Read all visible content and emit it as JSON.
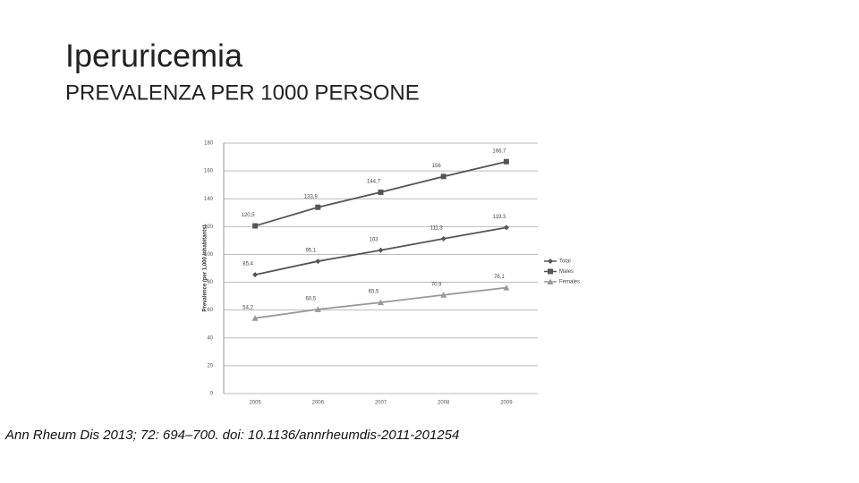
{
  "slide": {
    "title": "Iperuricemia",
    "subtitle": "PREVALENZA PER 1000 PERSONE",
    "source": "Ann Rheum Dis 2013; 72: 694–700. doi: 10.1136/annrheumdis-2011-201254"
  },
  "chart_data": {
    "type": "line",
    "y_label": "Prevalence (per 1,000 inhabitants)",
    "categories": [
      "2005",
      "2006",
      "2007",
      "2008",
      "2009"
    ],
    "series": [
      {
        "name": "Total",
        "color": "#555555",
        "marker": "diamond",
        "values": [
          85.4,
          95.1,
          103,
          111.3,
          119.3
        ],
        "value_labels": [
          "85,4",
          "95,1",
          "103",
          "111,3",
          "119,3"
        ]
      },
      {
        "name": "Males",
        "color": "#555555",
        "marker": "square",
        "values": [
          120.5,
          133.9,
          144.7,
          156,
          166.7
        ],
        "value_labels": [
          "120,5",
          "133,9",
          "144,7",
          "156",
          "166,7"
        ]
      },
      {
        "name": "Females",
        "color": "#999999",
        "marker": "triangle",
        "values": [
          54.2,
          60.5,
          65.5,
          70.9,
          76.1
        ],
        "value_labels": [
          "54,2",
          "60,5",
          "65,5",
          "70,9",
          "76,1"
        ]
      }
    ],
    "ylim": [
      0,
      180
    ],
    "yticks": [
      0,
      20,
      40,
      60,
      80,
      100,
      120,
      140,
      160,
      180
    ],
    "grid": true,
    "legend": "right"
  }
}
